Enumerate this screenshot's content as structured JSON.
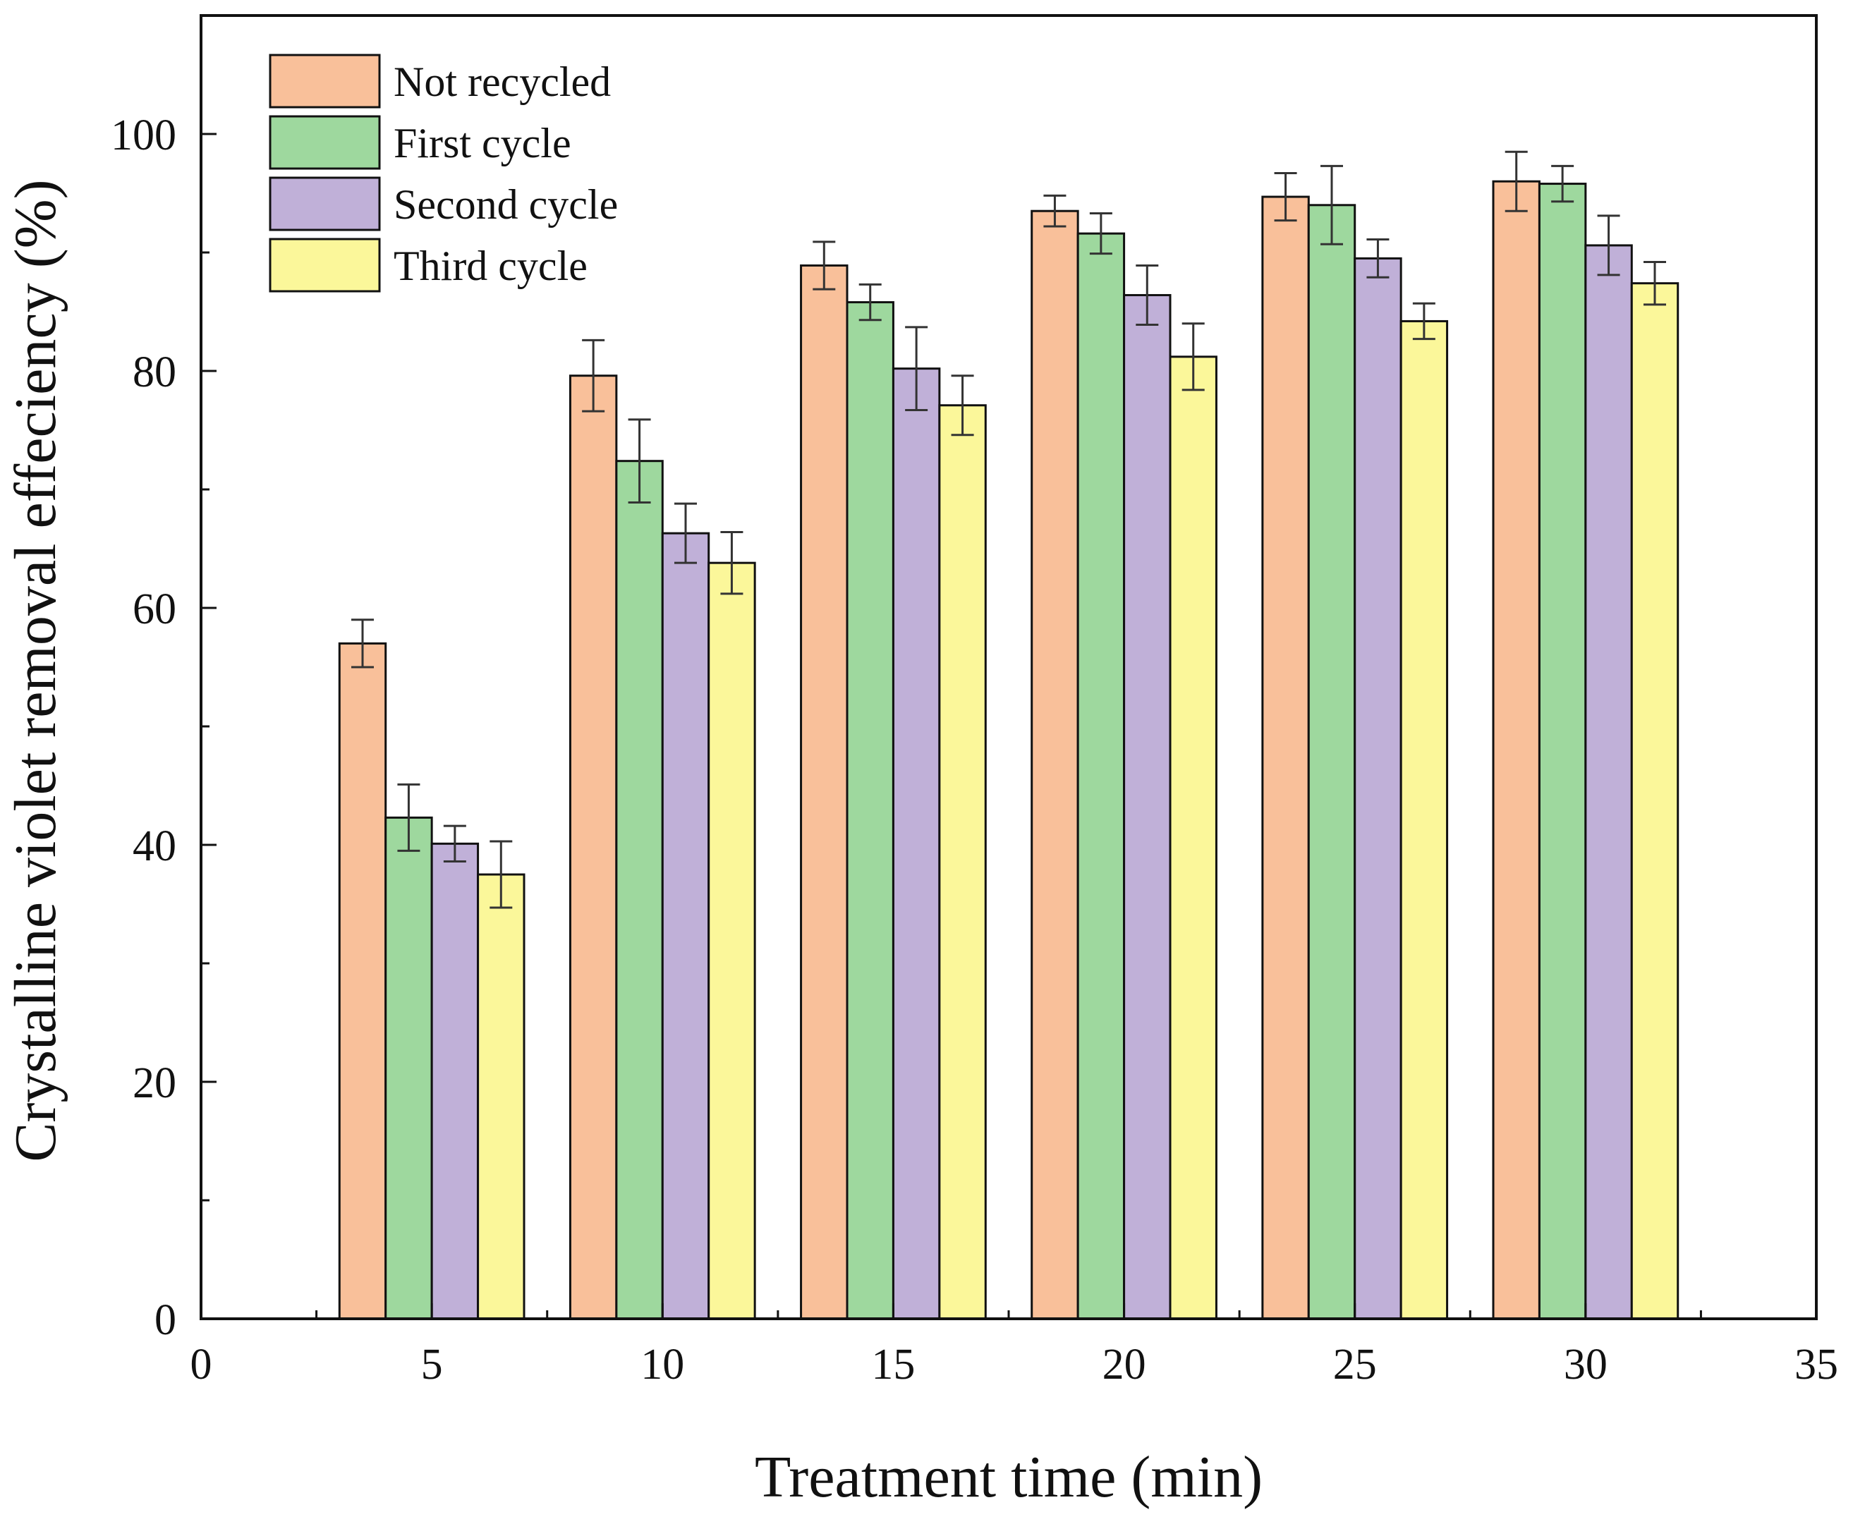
{
  "chart_data": {
    "type": "bar",
    "xlabel": "Treatment time (min)",
    "ylabel": "Crystalline violet removal effeciency (%)",
    "xlim": [
      0,
      35
    ],
    "ylim": [
      0,
      110
    ],
    "x_ticks": [
      "0",
      "5",
      "10",
      "15",
      "20",
      "25",
      "30",
      "35"
    ],
    "y_ticks": [
      "0",
      "20",
      "40",
      "60",
      "80",
      "100"
    ],
    "x_tick_values": [
      0,
      5,
      10,
      15,
      20,
      25,
      30,
      35
    ],
    "y_tick_values": [
      0,
      20,
      40,
      60,
      80,
      100
    ],
    "x_minor_tick_values": [
      2.5,
      7.5,
      12.5,
      17.5,
      22.5,
      27.5,
      32.5
    ],
    "y_minor_tick_values": [
      10,
      30,
      50,
      70,
      90
    ],
    "categories": [
      5,
      10,
      15,
      20,
      25,
      30
    ],
    "bar_width": 1.0,
    "legend_position": "top-left",
    "series": [
      {
        "name": "Not recycled",
        "color": "#f9c09a",
        "values": [
          57.0,
          79.6,
          88.9,
          93.5,
          94.7,
          96.0
        ],
        "errors": [
          2.0,
          3.0,
          2.0,
          1.3,
          2.0,
          2.5
        ]
      },
      {
        "name": "First cycle",
        "color": "#9ed89e",
        "values": [
          42.3,
          72.4,
          85.8,
          91.6,
          94.0,
          95.8
        ],
        "errors": [
          2.8,
          3.5,
          1.5,
          1.7,
          3.3,
          1.5
        ]
      },
      {
        "name": "Second cycle",
        "color": "#c0b0d8",
        "values": [
          40.1,
          66.3,
          80.2,
          86.4,
          89.5,
          90.6
        ],
        "errors": [
          1.5,
          2.5,
          3.5,
          2.5,
          1.6,
          2.5
        ]
      },
      {
        "name": "Third cycle",
        "color": "#fbf79a",
        "values": [
          37.5,
          63.8,
          77.1,
          81.2,
          84.2,
          87.4
        ],
        "errors": [
          2.8,
          2.6,
          2.5,
          2.8,
          1.5,
          1.8
        ]
      }
    ]
  }
}
